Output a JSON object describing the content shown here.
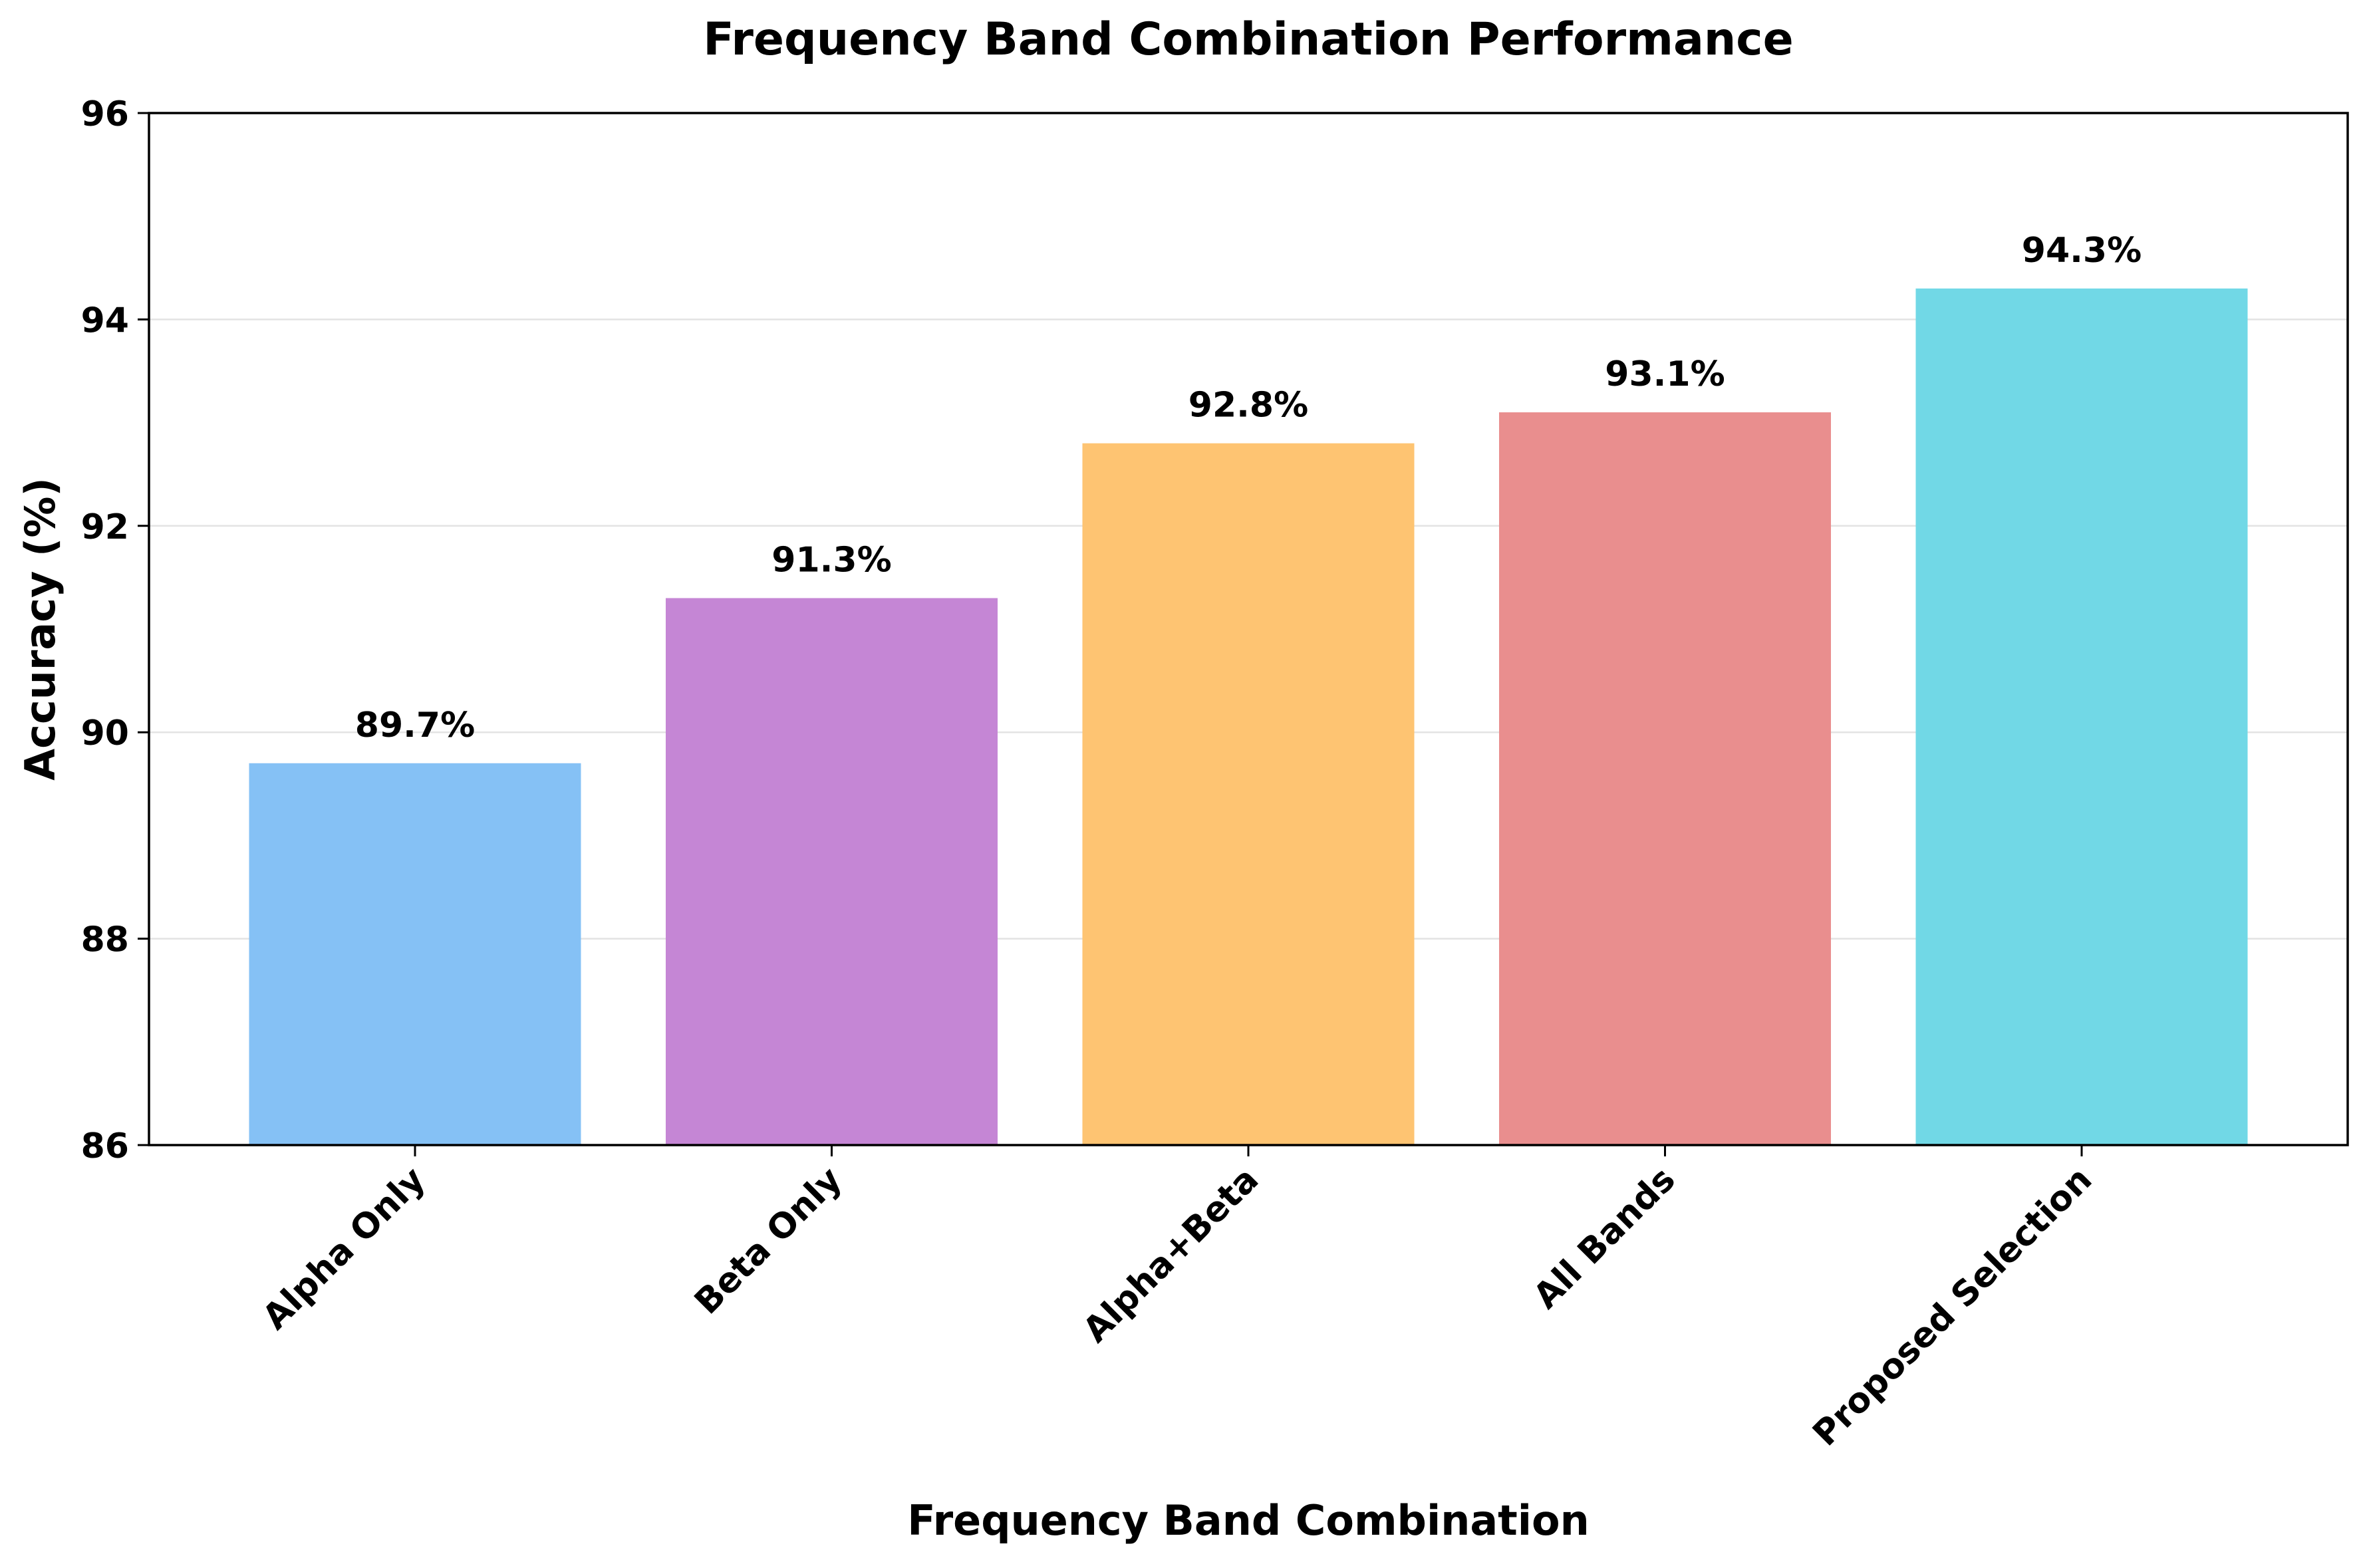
{
  "chart_data": {
    "type": "bar",
    "title": "Frequency Band Combination Performance",
    "xlabel": "Frequency Band Combination",
    "ylabel": "Accuracy (%)",
    "categories": [
      "Alpha Only",
      "Beta Only",
      "Alpha+Beta",
      "All Bands",
      "Proposed Selection"
    ],
    "values": [
      89.7,
      91.3,
      92.8,
      93.1,
      94.3
    ],
    "value_labels": [
      "89.7%",
      "91.3%",
      "92.8%",
      "93.1%",
      "94.3%"
    ],
    "colors": [
      "#85c1f5",
      "#c586d5",
      "#fec472",
      "#e98e8e",
      "#71d8e6"
    ],
    "ylim": [
      86,
      96
    ],
    "yticks": [
      86,
      88,
      90,
      92,
      94,
      96
    ],
    "ytick_labels": [
      "86",
      "88",
      "90",
      "92",
      "94",
      "96"
    ],
    "grid": "horizontal",
    "legend": "none"
  }
}
